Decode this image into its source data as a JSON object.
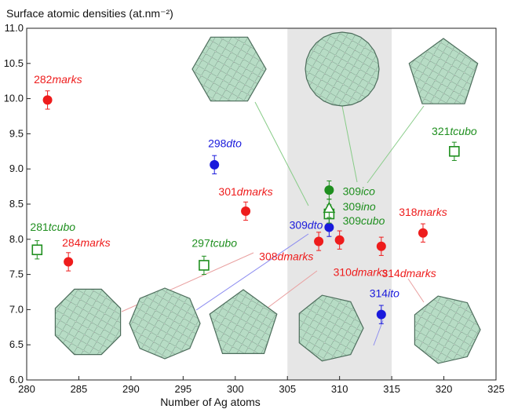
{
  "chart_data": {
    "type": "scatter",
    "title": "",
    "xlabel": "Number of Ag atoms",
    "ylabel": "Surface atomic densities (at.nm⁻²)",
    "xlim": [
      280,
      325
    ],
    "ylim": [
      6.0,
      11.0
    ],
    "xticks": [
      "280",
      "285",
      "290",
      "295",
      "300",
      "305",
      "310",
      "315",
      "320",
      "325"
    ],
    "yticks": [
      "6.0",
      "6.5",
      "7.0",
      "7.5",
      "8.0",
      "8.5",
      "9.0",
      "9.5",
      "10.0",
      "10.5",
      "11.0"
    ],
    "shaded_region": [
      305,
      315
    ],
    "error_bar": 0.13,
    "colors": {
      "marks": "#ee1c1c",
      "dto": "#1a1adc",
      "tcubo": "#1f8f1f",
      "connector": "#e9a0a0",
      "shading": "#e6e6e6",
      "cluster": "#b4dcc3"
    },
    "points": [
      {
        "x": 282,
        "y": 9.98,
        "num": "282",
        "suffix": "marks",
        "family": "marks",
        "marker": "filled-circle"
      },
      {
        "x": 284,
        "y": 7.68,
        "num": "284",
        "suffix": "marks",
        "family": "marks",
        "marker": "filled-circle"
      },
      {
        "x": 301,
        "y": 8.4,
        "num": "301",
        "suffix": "dmarks",
        "family": "marks",
        "marker": "filled-circle"
      },
      {
        "x": 308,
        "y": 7.97,
        "num": "308",
        "suffix": "dmarks",
        "family": "marks",
        "marker": "filled-circle"
      },
      {
        "x": 310,
        "y": 7.99,
        "num": "310",
        "suffix": "dmarks",
        "family": "marks",
        "marker": "filled-circle"
      },
      {
        "x": 314,
        "y": 7.9,
        "num": "314",
        "suffix": "dmarks",
        "family": "marks",
        "marker": "filled-circle"
      },
      {
        "x": 318,
        "y": 8.09,
        "num": "318",
        "suffix": "marks",
        "family": "marks",
        "marker": "filled-circle"
      },
      {
        "x": 298,
        "y": 9.06,
        "num": "298",
        "suffix": "dto",
        "family": "dto",
        "marker": "filled-circle"
      },
      {
        "x": 309,
        "y": 8.17,
        "num": "309",
        "suffix": "dto",
        "family": "dto",
        "marker": "filled-circle"
      },
      {
        "x": 314,
        "y": 6.93,
        "num": "314",
        "suffix": "ito",
        "family": "dto",
        "marker": "filled-circle"
      },
      {
        "x": 281,
        "y": 7.85,
        "num": "281",
        "suffix": "tcubo",
        "family": "tcubo",
        "marker": "open-square"
      },
      {
        "x": 297,
        "y": 7.63,
        "num": "297",
        "suffix": "tcubo",
        "family": "tcubo",
        "marker": "open-square"
      },
      {
        "x": 309,
        "y": 8.36,
        "num": "309",
        "suffix": "cubo",
        "family": "tcubo",
        "marker": "open-square"
      },
      {
        "x": 321,
        "y": 9.25,
        "num": "321",
        "suffix": "tcubo",
        "family": "tcubo",
        "marker": "open-square"
      },
      {
        "x": 309,
        "y": 8.7,
        "num": "309",
        "suffix": "ico",
        "family": "tcubo",
        "marker": "filled-circle"
      },
      {
        "x": 309,
        "y": 8.44,
        "num": "309",
        "suffix": "ino",
        "family": "tcubo",
        "marker": "open-triangle"
      }
    ]
  }
}
